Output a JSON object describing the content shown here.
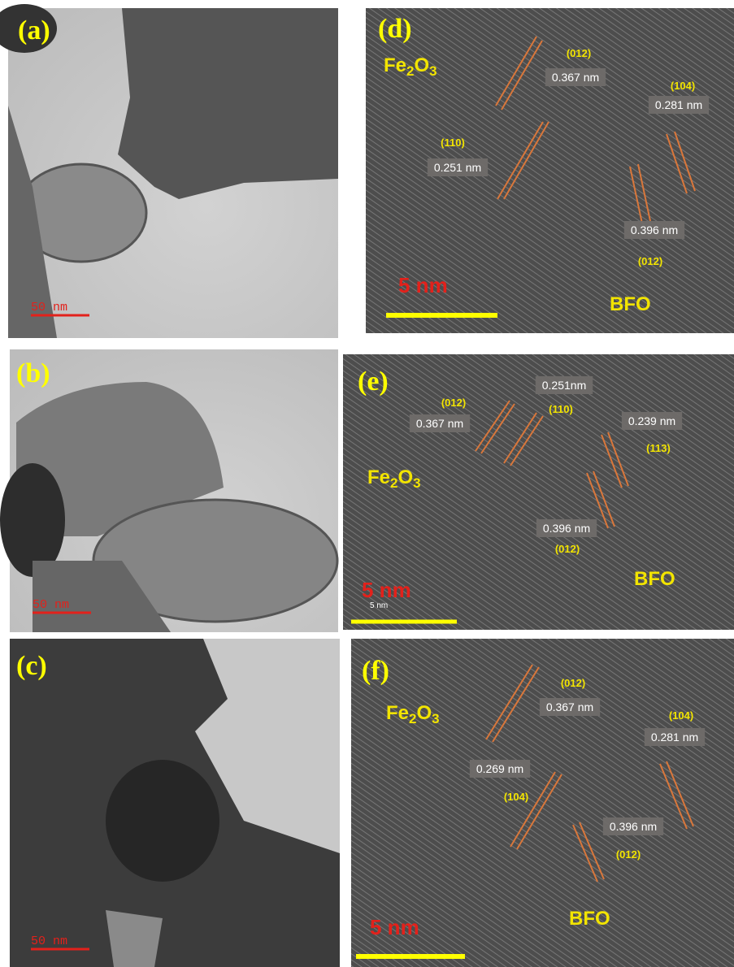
{
  "panels": [
    {
      "label": "(a)",
      "scale_bar": "50 nm"
    },
    {
      "label": "(b)",
      "scale_bar": "50 nm"
    },
    {
      "label": "(c)",
      "scale_bar": "50 nm"
    },
    {
      "label": "(d)",
      "phase_top": [
        "Fe",
        "2",
        "O",
        "3"
      ],
      "phase_bottom": "BFO",
      "scale_bar": "5 nm",
      "planes": [
        "(012)",
        "(104)",
        "(110)",
        "(012)"
      ],
      "spacings": [
        "0.367 nm",
        "0.281 nm",
        "0.251 nm",
        "0.396 nm"
      ]
    },
    {
      "label": "(e)",
      "phase_top": [
        "Fe",
        "2",
        "O",
        "3"
      ],
      "phase_bottom": "BFO",
      "scale_bar": "5 nm",
      "scale_bar_small": "5 nm",
      "planes": [
        "(012)",
        "(110)",
        "(113)",
        "(012)"
      ],
      "spacings": [
        "0.367 nm",
        "0.251nm",
        "0.239 nm",
        "0.396 nm"
      ]
    },
    {
      "label": "(f)",
      "phase_top": [
        "Fe",
        "2",
        "O",
        "3"
      ],
      "phase_bottom": "BFO",
      "scale_bar": "5 nm",
      "planes": [
        "(012)",
        "(104)",
        "(104)",
        "(012)"
      ],
      "spacings": [
        "0.367 nm",
        "0.281 nm",
        "0.269 nm",
        "0.396 nm"
      ]
    }
  ]
}
